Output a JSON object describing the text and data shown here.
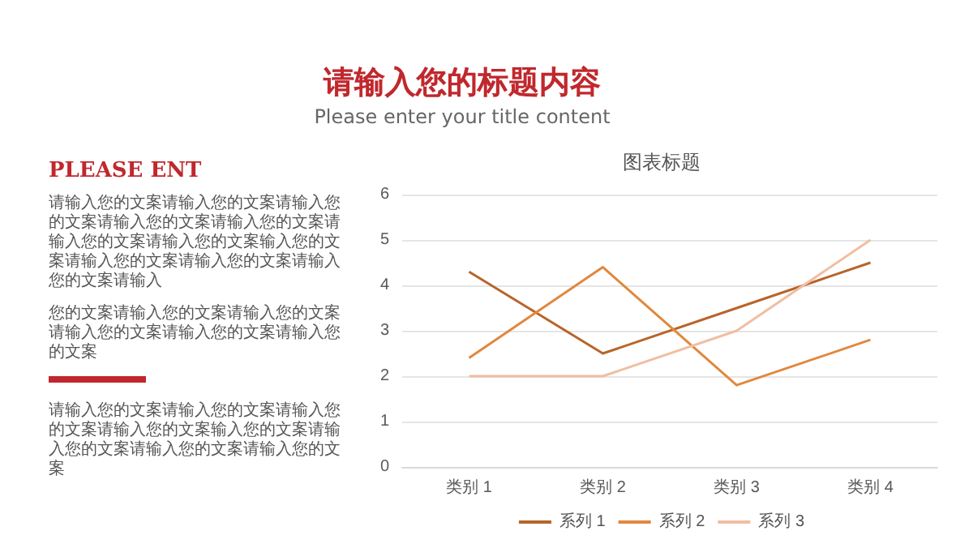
{
  "chart_data": {
    "type": "line",
    "title": "请输入您的标题内容",
    "subtitle": "Please enter your title content",
    "annotations": [
      "图表标题",
      "PLEASE ENT",
      "请输入您的文案请输入您的文案请输入您的文案请输入您的文案请输入您的文案请输入您的文案请输入您的文案输入您的文案请输入您的文案请输入您的文案请输入您的文案请输入",
      "您的文案请输入您的文案请输入您的文案请输入您的文案请输入您的文案请输入您的文案",
      "请输入您的文案请输入您的文案请输入您的文案请输入您的文案输入您的文案请输入您的文案请输入您的文案请输入您的文案"
    ],
    "categories": [
      "类别 1",
      "类别 2",
      "类别 3",
      "类别 4"
    ],
    "series": [
      {
        "name": "系列 1",
        "color": "#b8642a",
        "values": [
          4.3,
          2.5,
          3.5,
          4.5
        ]
      },
      {
        "name": "系列 2",
        "color": "#e0883e",
        "values": [
          2.4,
          4.4,
          1.8,
          2.8
        ]
      },
      {
        "name": "系列 3",
        "color": "#f0bea2",
        "values": [
          2,
          2,
          3,
          5
        ]
      }
    ],
    "ylim": [
      0,
      6
    ],
    "yticks": [
      0,
      1,
      2,
      3,
      4,
      5,
      6
    ],
    "grid": "y",
    "legend": "bottom",
    "marker": "none",
    "line_style": "solid"
  }
}
